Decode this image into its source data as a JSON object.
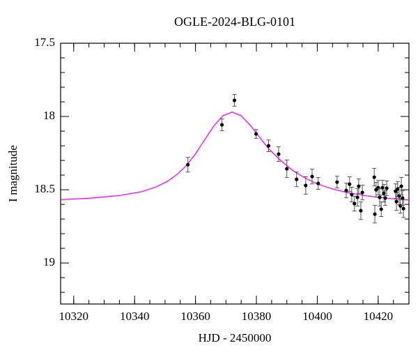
{
  "chart_data": {
    "type": "scatter",
    "title": "OGLE-2024-BLG-0101",
    "x_label": "HJD - 2450000",
    "y_label": "I magnitude",
    "xlim": [
      10315.7,
      10430.1
    ],
    "ylim": [
      17.5,
      19.28
    ],
    "y_inverted": true,
    "xticks": [
      10320,
      10340,
      10360,
      10380,
      10400,
      10420
    ],
    "yticks": [
      17.5,
      18,
      18.5,
      19
    ],
    "xminorticks": [
      10320,
      10325,
      10330,
      10335,
      10340,
      10345,
      10350,
      10355,
      10360,
      10365,
      10370,
      10375,
      10380,
      10385,
      10390,
      10395,
      10400,
      10405,
      10410,
      10415,
      10420,
      10425
    ],
    "yminorticks": [
      17.6,
      17.7,
      17.8,
      17.9,
      18.1,
      18.2,
      18.3,
      18.4,
      18.6,
      18.7,
      18.8,
      18.9,
      19.1,
      19.2
    ],
    "series": [
      {
        "color": "#000000",
        "error_color": "#555555",
        "x": [
          10357.5,
          10368.7,
          10372.8,
          10379.9,
          10384.0,
          10387.3,
          10390.0,
          10393.2,
          10396.2,
          10398.3,
          10400.3,
          10406.5,
          10409.5,
          10410.6,
          10411.3,
          10412.2,
          10413.2,
          10413.6,
          10414.3,
          10414.8,
          10418.7,
          10418.9,
          10419.3,
          10420.0,
          10420.5,
          10421.0,
          10421.4,
          10421.9,
          10422.3,
          10422.8,
          10425.7,
          10426.0,
          10426.4,
          10426.9,
          10427.3,
          10427.6,
          10428.0,
          10428.3
        ],
        "values": [
          18.329,
          18.057,
          17.89,
          18.119,
          18.2,
          18.257,
          18.357,
          18.429,
          18.471,
          18.41,
          18.457,
          18.448,
          18.505,
          18.462,
          18.533,
          18.595,
          18.552,
          18.476,
          18.643,
          18.519,
          18.414,
          18.667,
          18.5,
          18.486,
          18.552,
          18.633,
          18.486,
          18.524,
          18.557,
          18.49,
          18.51,
          18.581,
          18.495,
          18.543,
          18.61,
          18.476,
          18.557,
          18.629
        ],
        "errors": [
          0.05,
          0.04,
          0.04,
          0.03,
          0.04,
          0.05,
          0.06,
          0.05,
          0.06,
          0.05,
          0.04,
          0.04,
          0.05,
          0.05,
          0.05,
          0.05,
          0.06,
          0.05,
          0.06,
          0.05,
          0.06,
          0.06,
          0.05,
          0.05,
          0.06,
          0.05,
          0.05,
          0.06,
          0.05,
          0.05,
          0.05,
          0.06,
          0.05,
          0.06,
          0.05,
          0.06,
          0.05,
          0.06
        ]
      }
    ],
    "model": {
      "color": "#ff00ff",
      "x": [
        10315.7,
        10325,
        10335,
        10342,
        10347,
        10351,
        10354,
        10357,
        10360,
        10363,
        10366,
        10369,
        10372,
        10375,
        10378,
        10381,
        10384,
        10388,
        10392,
        10396,
        10400,
        10405,
        10410,
        10415,
        10420,
        10425,
        10430.1
      ],
      "values": [
        18.568,
        18.558,
        18.54,
        18.515,
        18.482,
        18.44,
        18.395,
        18.335,
        18.255,
        18.16,
        18.065,
        17.995,
        17.97,
        17.995,
        18.06,
        18.14,
        18.22,
        18.3,
        18.37,
        18.42,
        18.46,
        18.495,
        18.52,
        18.538,
        18.552,
        18.562,
        18.57
      ]
    }
  }
}
